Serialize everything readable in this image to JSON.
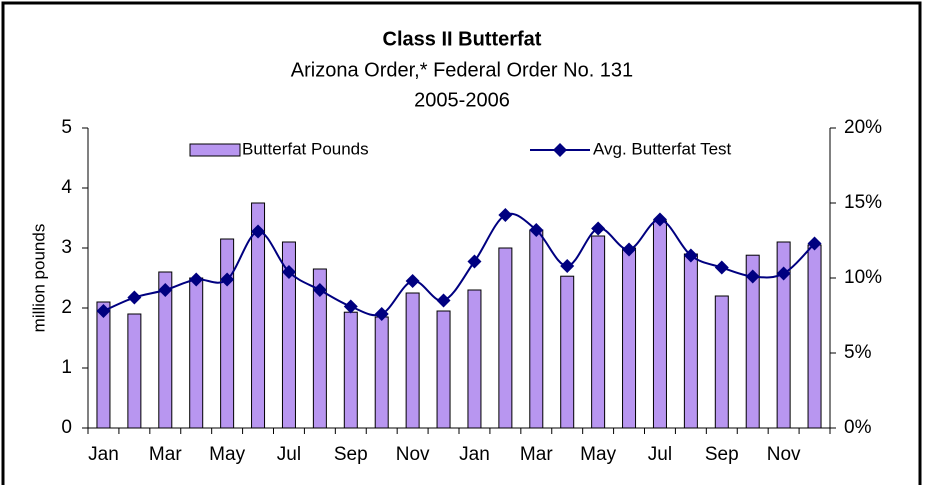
{
  "chart_data": {
    "type": "bar_line",
    "title": "Class II Butterfat",
    "subtitle": "Arizona Order,* Federal Order No. 131",
    "subtitle2": "2005-2006",
    "ylabel": "million pounds",
    "categories": [
      "Jan",
      null,
      "Mar",
      null,
      "May",
      null,
      "Jul",
      null,
      "Sep",
      null,
      "Nov",
      null,
      "Jan",
      null,
      "Mar",
      null,
      "May",
      null,
      "Jul",
      null,
      "Sep",
      null,
      "Nov",
      null
    ],
    "series": [
      {
        "name": "Butterfat Pounds",
        "type": "bar",
        "color": "#b896f0",
        "values": [
          2.1,
          1.9,
          2.6,
          2.5,
          3.15,
          3.75,
          3.1,
          2.65,
          1.93,
          1.85,
          2.25,
          1.95,
          2.3,
          3.0,
          3.3,
          2.53,
          3.2,
          3.0,
          3.45,
          2.9,
          2.2,
          2.88,
          3.1,
          3.05
        ]
      },
      {
        "name": "Avg. Butterfat Test",
        "type": "line",
        "axis": "y2",
        "color": "#000080",
        "values": [
          7.8,
          8.7,
          9.2,
          9.9,
          9.9,
          13.1,
          10.4,
          9.2,
          8.1,
          7.6,
          9.8,
          8.5,
          11.1,
          14.2,
          13.2,
          10.8,
          13.3,
          11.9,
          13.9,
          11.5,
          10.7,
          10.1,
          10.3,
          12.3
        ]
      }
    ],
    "ylim": [
      0,
      5
    ],
    "yticks": [
      0,
      1,
      2,
      3,
      4,
      5
    ],
    "y2lim": [
      0,
      20
    ],
    "y2ticks": [
      {
        "value": 0,
        "label": "0%"
      },
      {
        "value": 5,
        "label": "5%"
      },
      {
        "value": 10,
        "label": "10%"
      },
      {
        "value": 15,
        "label": "15%"
      },
      {
        "value": 20,
        "label": "20%"
      }
    ],
    "grid": false,
    "legend": "top"
  }
}
